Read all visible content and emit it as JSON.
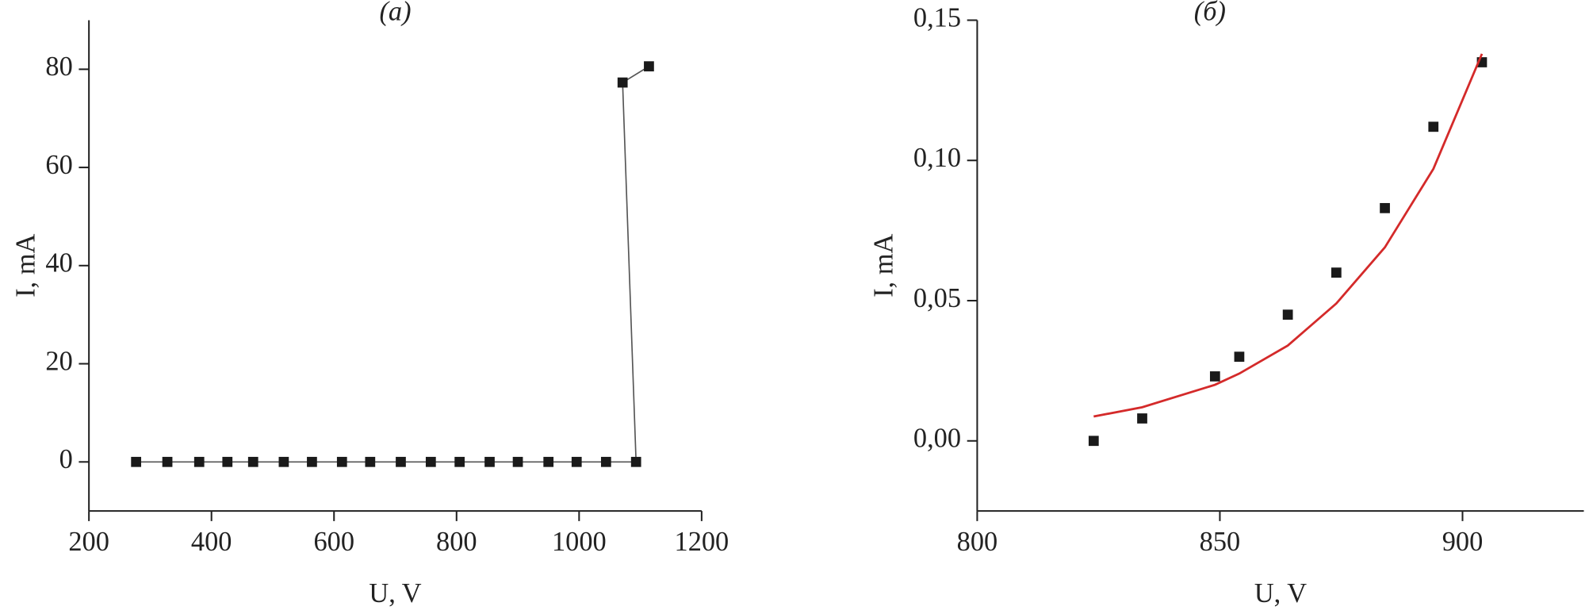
{
  "chart_data": [
    {
      "type": "line",
      "title": "(a)",
      "x_label": "U, V",
      "y_label": "I, mA",
      "xlim": [
        200,
        1200
      ],
      "xticks": [
        200,
        400,
        600,
        800,
        1000,
        1200
      ],
      "ylim": [
        -10,
        90
      ],
      "yticks": [
        0,
        20,
        40,
        60,
        80
      ],
      "series": [
        {
          "color": "#1a1a1a",
          "line_color": "#555555",
          "x": [
            277,
            328,
            380,
            426,
            468,
            518,
            564,
            613,
            659,
            709,
            758,
            805,
            854,
            900,
            950,
            996,
            1044,
            1093,
            1071,
            1114
          ],
          "values": [
            0,
            0,
            0,
            0,
            0,
            0,
            0,
            0,
            0,
            0,
            0,
            0,
            0,
            0,
            0,
            0,
            0,
            0,
            77.3,
            80.6
          ],
          "style": "line-markers"
        }
      ]
    },
    {
      "type": "scatter",
      "title": "(б)",
      "x_label": "U, V",
      "y_label": "I, mA",
      "xlim": [
        800,
        925
      ],
      "xticks": [
        800,
        850,
        900
      ],
      "ylim": [
        -0.025,
        0.15
      ],
      "yticks": [
        {
          "value": 0,
          "label": "0,00"
        },
        {
          "value": 0.05,
          "label": "0,05"
        },
        {
          "value": 0.1,
          "label": "0,10"
        },
        {
          "value": 0.15,
          "label": "0,15"
        }
      ],
      "series": [
        {
          "color": "#1a1a1a",
          "style": "markers",
          "x": [
            824,
            834,
            849,
            854,
            864,
            874,
            884,
            894,
            904
          ],
          "values": [
            0,
            0.008,
            0.023,
            0.03,
            0.045,
            0.06,
            0.083,
            0.112,
            0.135
          ]
        },
        {
          "color": "#d42a2a",
          "style": "line",
          "x": [
            824,
            834,
            849,
            854,
            864,
            874,
            884,
            894,
            904
          ],
          "values": [
            0.0087,
            0.012,
            0.02,
            0.024,
            0.034,
            0.049,
            0.069,
            0.097,
            0.138
          ]
        }
      ]
    }
  ]
}
